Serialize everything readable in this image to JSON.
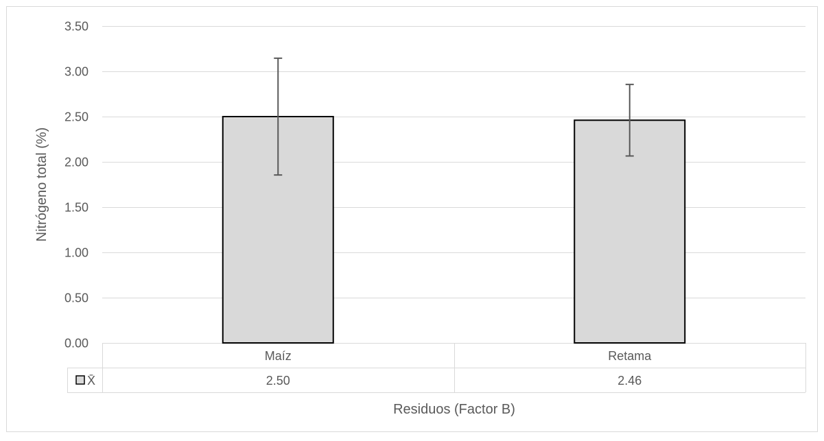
{
  "chart_data": {
    "type": "bar",
    "title": "",
    "xlabel": "Residuos (Factor B)",
    "ylabel": "Nitrógeno total (%)",
    "categories": [
      "Maíz",
      "Retama"
    ],
    "series": [
      {
        "name": "X̄",
        "values": [
          2.5,
          2.46
        ],
        "value_labels": [
          "2.50",
          "2.46"
        ],
        "error": [
          0.645,
          0.395
        ],
        "fill": "#d9d9d9",
        "stroke": "#000000"
      }
    ],
    "ylim": [
      0,
      3.5
    ],
    "yticks": [
      0,
      0.5,
      1.0,
      1.5,
      2.0,
      2.5,
      3.0,
      3.5
    ],
    "ytick_labels": [
      "0.00",
      "0.50",
      "1.00",
      "1.50",
      "2.00",
      "2.50",
      "3.00",
      "3.50"
    ],
    "grid": true,
    "data_table": true,
    "colors": {
      "gridline": "#d9d9d9",
      "text": "#595959",
      "errorbar": "#595959",
      "frame": "#d9d9d9"
    }
  }
}
